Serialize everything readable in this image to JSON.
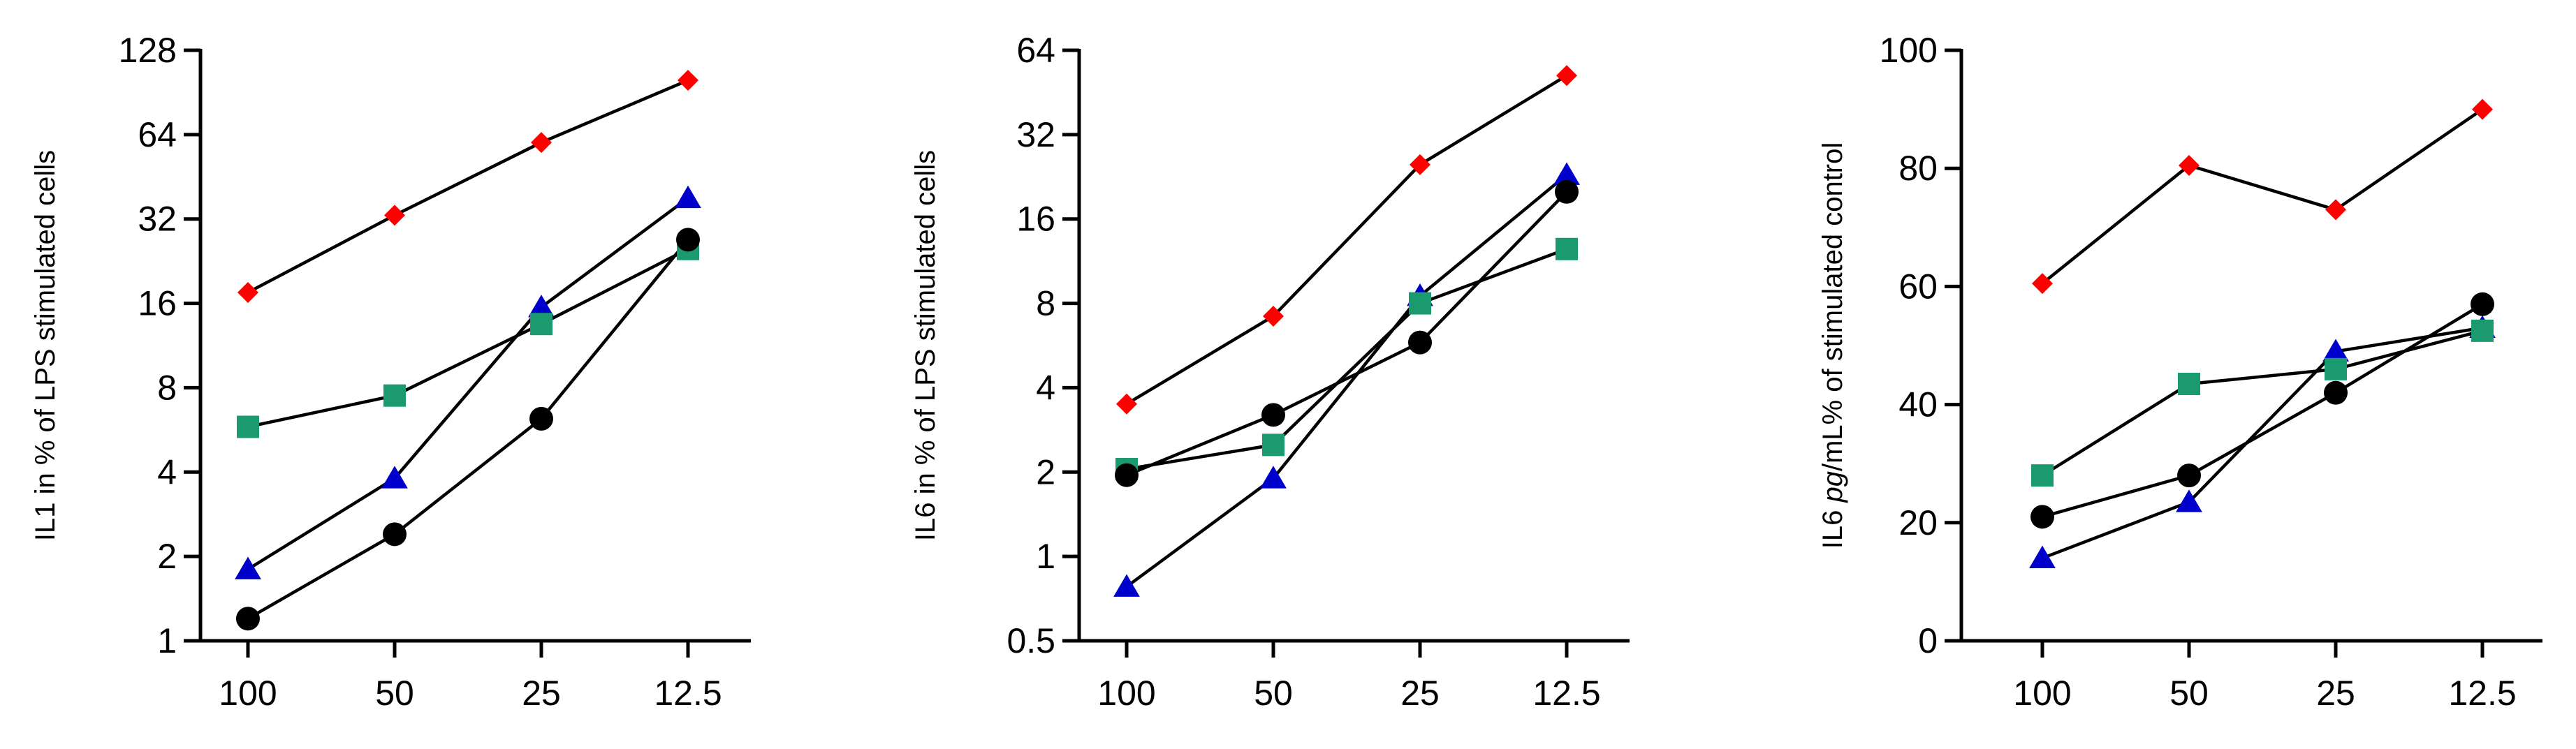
{
  "colors": {
    "axis": "#000000",
    "line": "#000000",
    "red": "#ff0000",
    "blue": "#0000cc",
    "green": "#1a9a6e",
    "black": "#000000"
  },
  "chart_data": [
    {
      "type": "line",
      "scale": "log2",
      "ylabel": "IL1 in % of LPS stimulated  cells",
      "categories": [
        "100",
        "50",
        "25",
        "12.5"
      ],
      "yticks": [
        1,
        2,
        4,
        8,
        16,
        32,
        64,
        128
      ],
      "ytick_labels": [
        "1",
        "2",
        "4",
        "8",
        "16",
        "32",
        "64",
        "128"
      ],
      "ylim": [
        1,
        128
      ],
      "grid": false,
      "series": [
        {
          "name": "red-diamond",
          "marker": "diamond",
          "color": "#ff0000",
          "values": [
            17.5,
            33,
            60,
            100
          ]
        },
        {
          "name": "blue-triangle",
          "marker": "triangle",
          "color": "#0000cc",
          "values": [
            1.8,
            3.8,
            15.5,
            38
          ]
        },
        {
          "name": "green-square",
          "marker": "square",
          "color": "#1a9a6e",
          "values": [
            5.8,
            7.5,
            13.5,
            25
          ]
        },
        {
          "name": "black-circle",
          "marker": "circle",
          "color": "#000000",
          "values": [
            1.2,
            2.4,
            6.2,
            27
          ]
        }
      ]
    },
    {
      "type": "line",
      "scale": "log2",
      "ylabel": "IL6 in % of LPS stimulated  cells",
      "categories": [
        "100",
        "50",
        "25",
        "12.5"
      ],
      "yticks": [
        0.5,
        1,
        2,
        4,
        8,
        16,
        32,
        64
      ],
      "ytick_labels": [
        "0.5",
        "1",
        "2",
        "4",
        "8",
        "16",
        "32",
        "64"
      ],
      "ylim": [
        0.5,
        64
      ],
      "grid": false,
      "series": [
        {
          "name": "red-diamond",
          "marker": "diamond",
          "color": "#ff0000",
          "values": [
            3.5,
            7.2,
            25,
            52
          ]
        },
        {
          "name": "blue-triangle",
          "marker": "triangle",
          "color": "#0000cc",
          "values": [
            0.78,
            1.9,
            8.5,
            23
          ]
        },
        {
          "name": "green-square",
          "marker": "square",
          "color": "#1a9a6e",
          "values": [
            2.05,
            2.5,
            8,
            12.5
          ]
        },
        {
          "name": "black-circle",
          "marker": "circle",
          "color": "#000000",
          "values": [
            1.95,
            3.2,
            5.8,
            20
          ]
        }
      ]
    },
    {
      "type": "line",
      "scale": "linear",
      "ylabel_parts": [
        "IL6 ",
        "pg",
        "/mL% of stimulated  control"
      ],
      "categories": [
        "100",
        "50",
        "25",
        "12.5"
      ],
      "yticks": [
        0,
        20,
        40,
        60,
        80,
        100
      ],
      "ytick_labels": [
        "0",
        "20",
        "40",
        "60",
        "80",
        "100"
      ],
      "ylim": [
        0,
        100
      ],
      "grid": false,
      "series": [
        {
          "name": "red-diamond",
          "marker": "diamond",
          "color": "#ff0000",
          "values": [
            60.5,
            80.5,
            73,
            90
          ]
        },
        {
          "name": "blue-triangle",
          "marker": "triangle",
          "color": "#0000cc",
          "values": [
            14,
            23.5,
            49,
            53
          ]
        },
        {
          "name": "green-square",
          "marker": "square",
          "color": "#1a9a6e",
          "values": [
            28,
            43.5,
            46,
            52.5
          ]
        },
        {
          "name": "black-circle",
          "marker": "circle",
          "color": "#000000",
          "values": [
            21,
            28,
            42,
            57
          ]
        }
      ]
    }
  ]
}
